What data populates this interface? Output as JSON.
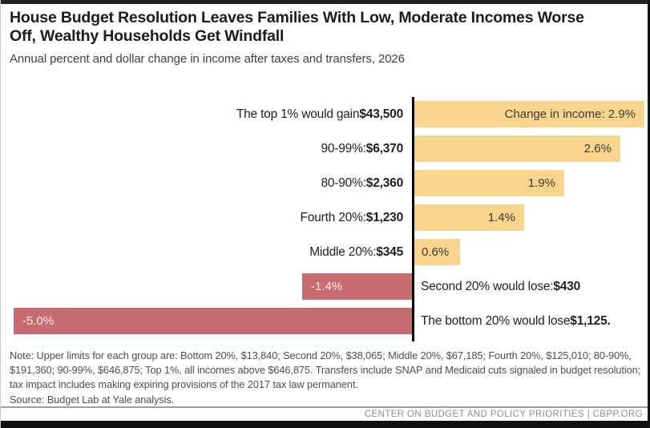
{
  "title": "House Budget Resolution Leaves Families With Low, Moderate Incomes Worse Off, Wealthy Households Get Windfall",
  "subtitle": "Annual percent and dollar change in income after taxes and transfers, 2026",
  "chart_data": {
    "type": "bar",
    "orientation": "horizontal",
    "x_unit": "percent change in income",
    "x_range": [
      -5.0,
      2.9
    ],
    "grid": false,
    "legend": "none",
    "colors": {
      "positive_bar": "#F8D48D",
      "negative_bar": "#C76C70",
      "axis_line": "#000000"
    },
    "rows": [
      {
        "label_prefix": "The top 1% would gain ",
        "label_amount": "$43,500",
        "label_suffix": "",
        "value": 2.9,
        "bar_label": "Change in income: 2.9%"
      },
      {
        "label_prefix": "90-99%: ",
        "label_amount": "$6,370",
        "label_suffix": "",
        "value": 2.6,
        "bar_label": "2.6%"
      },
      {
        "label_prefix": "80-90%: ",
        "label_amount": "$2,360",
        "label_suffix": "",
        "value": 1.9,
        "bar_label": "1.9%"
      },
      {
        "label_prefix": "Fourth 20%: ",
        "label_amount": "$1,230",
        "label_suffix": "",
        "value": 1.4,
        "bar_label": "1.4%"
      },
      {
        "label_prefix": "Middle 20%: ",
        "label_amount": "$345",
        "label_suffix": "",
        "value": 0.6,
        "bar_label": "0.6%"
      },
      {
        "label_prefix": "Second 20% would lose: ",
        "label_amount": "$430",
        "label_suffix": "",
        "value": -1.4,
        "bar_label": "-1.4%"
      },
      {
        "label_prefix": "The bottom 20% would lose ",
        "label_amount": "$1,125",
        "label_suffix": ".",
        "value": -5.0,
        "bar_label": "-5.0%"
      }
    ]
  },
  "note": "Note: Upper limits for each group are: Bottom 20%, $13,840; Second 20%, $38,065; Middle 20%, $67,185; Fourth 20%, $125,010; 80-90%, $191,360; 90-99%, $646,875; Top 1%, all incomes above $646,875. Transfers include SNAP and Medicaid cuts signaled in budget resolution; tax impact includes making expiring provisions of the 2017 tax law permanent.",
  "source": "Source: Budget Lab at Yale analysis.",
  "footer": "CENTER ON BUDGET AND POLICY PRIORITIES | CBPP.ORG"
}
